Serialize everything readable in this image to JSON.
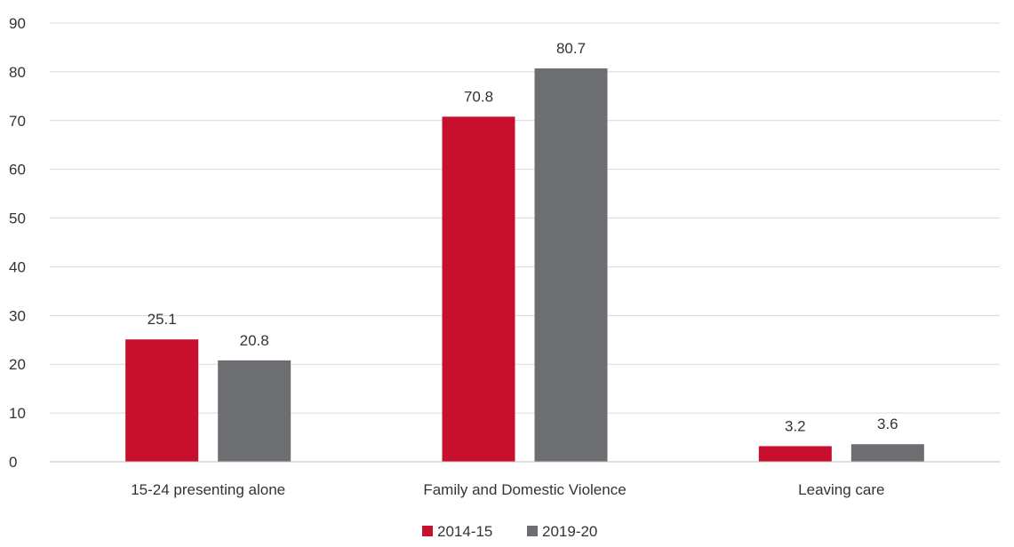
{
  "chart_data": {
    "type": "bar",
    "categories": [
      "15-24 presenting alone",
      "Family and Domestic Violence",
      "Leaving care"
    ],
    "series": [
      {
        "name": "2014-15",
        "values": [
          25.1,
          70.8,
          3.2
        ],
        "color": "#c8102e"
      },
      {
        "name": "2019-20",
        "values": [
          20.8,
          80.7,
          3.6
        ],
        "color": "#6d6e71"
      }
    ],
    "yticks": [
      "0",
      "10",
      "20",
      "30",
      "40",
      "50",
      "60",
      "70",
      "80",
      "90"
    ],
    "ylim": [
      0,
      90
    ],
    "grid": true,
    "legend_position": "bottom"
  }
}
